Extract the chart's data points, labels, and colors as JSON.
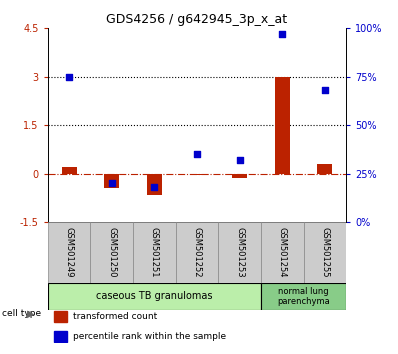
{
  "title": "GDS4256 / g642945_3p_x_at",
  "samples": [
    "GSM501249",
    "GSM501250",
    "GSM501251",
    "GSM501252",
    "GSM501253",
    "GSM501254",
    "GSM501255"
  ],
  "red_values": [
    0.2,
    -0.45,
    -0.65,
    -0.05,
    -0.12,
    3.0,
    0.3
  ],
  "blue_values": [
    75.0,
    20.0,
    18.0,
    35.0,
    32.0,
    97.0,
    68.0
  ],
  "ylim_left": [
    -1.5,
    4.5
  ],
  "ylim_right": [
    0,
    100
  ],
  "yticks_left": [
    -1.5,
    0,
    1.5,
    3,
    4.5
  ],
  "yticks_right": [
    0,
    25,
    50,
    75,
    100
  ],
  "ytick_labels_left": [
    "-1.5",
    "0",
    "1.5",
    "3",
    "4.5"
  ],
  "ytick_labels_right": [
    "0%",
    "25%",
    "50%",
    "75%",
    "100%"
  ],
  "hlines": [
    1.5,
    3.0
  ],
  "red_color": "#bb2200",
  "blue_color": "#0000cc",
  "cell_groups": [
    {
      "label": "caseous TB granulomas",
      "span": [
        0,
        4
      ],
      "color": "#bbeeaa"
    },
    {
      "label": "normal lung\nparenchyma",
      "span": [
        5,
        6
      ],
      "color": "#88cc88"
    }
  ],
  "legend_items": [
    {
      "color": "#bb2200",
      "label": "transformed count"
    },
    {
      "color": "#0000cc",
      "label": "percentile rank within the sample"
    }
  ],
  "bar_width": 0.35,
  "background_color": "#ffffff"
}
